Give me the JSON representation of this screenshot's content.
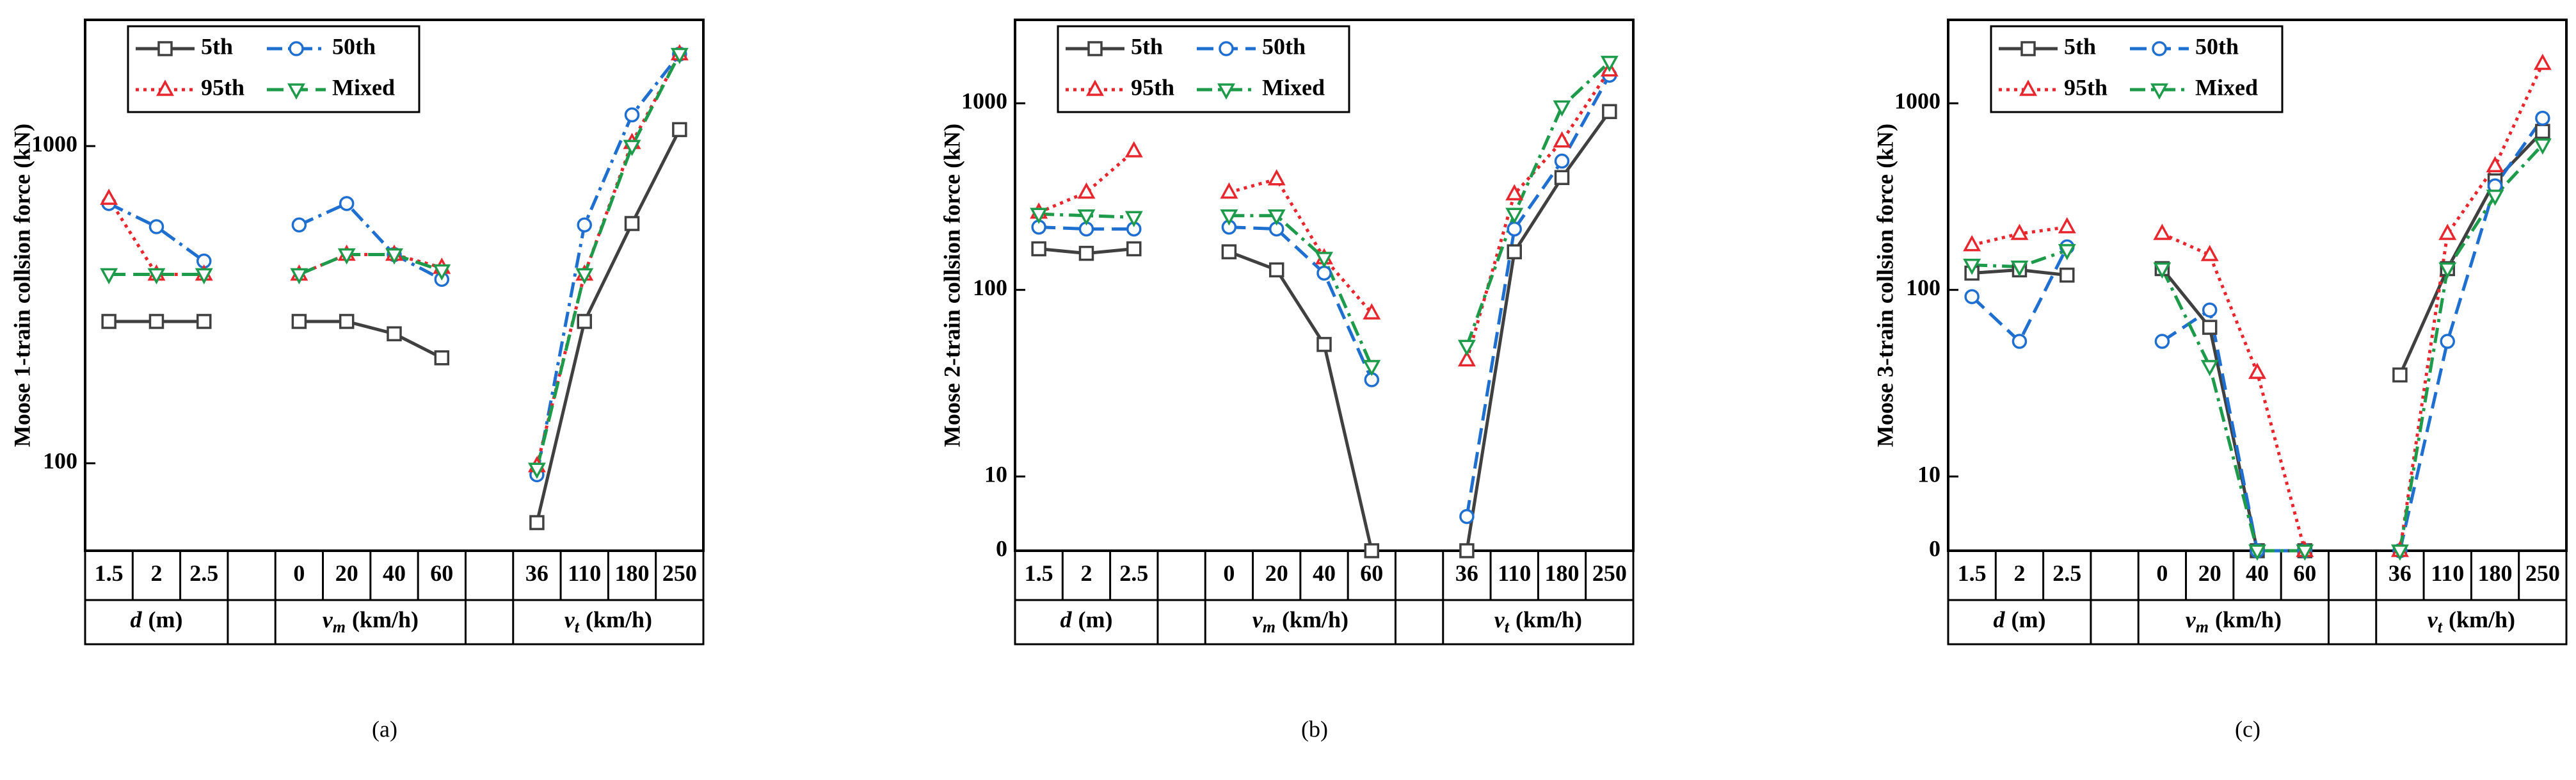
{
  "chart_data": [
    {
      "type": "line",
      "label": "(a)",
      "ylabel": "Moose 1-train collsion force (kN)",
      "log": true,
      "legend": "upper left",
      "categories": [
        "1.5",
        "2",
        "2.5",
        null,
        "0",
        "20",
        "40",
        "60",
        null,
        "36",
        "110",
        "180",
        "250"
      ],
      "groups": [
        {
          "var": "d",
          "unit": "(m)"
        },
        {
          "var": "v",
          "sub": "m",
          "unit": "(km/h)"
        },
        {
          "var": "v",
          "sub": "t",
          "unit": "(km/h)"
        }
      ],
      "ylim": [
        53,
        2500
      ],
      "yticks": [
        100,
        1000
      ],
      "series": [
        {
          "name": "5th",
          "color": "#404040",
          "marker": "square",
          "linestyle": "solid",
          "values": [
            280,
            280,
            280,
            null,
            280,
            280,
            256,
            215,
            null,
            65,
            280,
            570,
            1127
          ]
        },
        {
          "name": "50th",
          "color": "#1f6fd0",
          "marker": "circle",
          "linestyle": "dashdot",
          "values": [
            659,
            557,
            434,
            null,
            564,
            659,
            455,
            380,
            null,
            92,
            564,
            1254,
            1950
          ]
        },
        {
          "name": "95th",
          "color": "#e8262d",
          "marker": "triangle-up",
          "linestyle": "dotted",
          "values": [
            683,
            394,
            394,
            null,
            394,
            455,
            455,
            414,
            null,
            98,
            394,
            1024,
            1950
          ]
        },
        {
          "name": "Mixed",
          "color": "#1e9b4a",
          "marker": "triangle-down",
          "linestyle": "dashed",
          "values": [
            394,
            394,
            394,
            null,
            394,
            455,
            455,
            405,
            null,
            96,
            394,
            1000,
            1950
          ]
        }
      ]
    },
    {
      "type": "line",
      "label": "(b)",
      "ylabel": "Moose 2-train collsion force (kN)",
      "log": true,
      "legend": "upper left",
      "categories": [
        "1.5",
        "2",
        "2.5",
        null,
        "0",
        "20",
        "40",
        "60",
        null,
        "36",
        "110",
        "180",
        "250"
      ],
      "groups": [
        {
          "var": "d",
          "unit": "(m)"
        },
        {
          "var": "v",
          "sub": "m",
          "unit": "(km/h)"
        },
        {
          "var": "v",
          "sub": "t",
          "unit": "(km/h)"
        }
      ],
      "ylim": [
        0,
        2800
      ],
      "yticks": [
        0,
        10,
        100,
        1000
      ],
      "series": [
        {
          "name": "5th",
          "color": "#404040",
          "marker": "square",
          "linestyle": "solid",
          "values": [
            166,
            157,
            166,
            null,
            160,
            128,
            51,
            0,
            null,
            0,
            160,
            400,
            903
          ]
        },
        {
          "name": "50th",
          "color": "#1f6fd0",
          "marker": "circle",
          "linestyle": "dashed",
          "values": [
            217,
            212,
            212,
            null,
            217,
            212,
            123,
            33,
            null,
            6.1,
            212,
            490,
            1414
          ]
        },
        {
          "name": "95th",
          "color": "#e8262d",
          "marker": "triangle-up",
          "linestyle": "dotted",
          "values": [
            260,
            333,
            554,
            null,
            333,
            392,
            148,
            75,
            null,
            42,
            326,
            626,
            1503
          ]
        },
        {
          "name": "Mixed",
          "color": "#1e9b4a",
          "marker": "triangle-down",
          "linestyle": "dashdot",
          "values": [
            255,
            250,
            245,
            null,
            250,
            250,
            148,
            39,
            null,
            50,
            255,
            960,
            1664
          ]
        }
      ]
    },
    {
      "type": "line",
      "label": "(c)",
      "ylabel": "Moose 3-train collsion force (kN)",
      "log": true,
      "legend": "upper left",
      "categories": [
        "1.5",
        "2",
        "2.5",
        null,
        "0",
        "20",
        "40",
        "60",
        null,
        "36",
        "110",
        "180",
        "250"
      ],
      "groups": [
        {
          "var": "d",
          "unit": "(m)"
        },
        {
          "var": "v",
          "sub": "m",
          "unit": "(km/h)"
        },
        {
          "var": "v",
          "sub": "t",
          "unit": "(km/h)"
        }
      ],
      "ylim": [
        0,
        2800
      ],
      "yticks": [
        0,
        10,
        100,
        1000
      ],
      "series": [
        {
          "name": "5th",
          "color": "#404040",
          "marker": "square",
          "linestyle": "solid",
          "values": [
            123,
            128,
            120,
            null,
            130,
            63,
            0,
            0,
            null,
            35,
            130,
            384,
            707
          ]
        },
        {
          "name": "50th",
          "color": "#1f6fd0",
          "marker": "circle",
          "linestyle": "dashed",
          "values": [
            92,
            53,
            170,
            null,
            53,
            78,
            0,
            0,
            null,
            0,
            53,
            361,
            832
          ]
        },
        {
          "name": "95th",
          "color": "#e8262d",
          "marker": "triangle-up",
          "linestyle": "dotted",
          "values": [
            174,
            200,
            217,
            null,
            200,
            154,
            36,
            0,
            null,
            0,
            200,
            461,
            1630
          ]
        },
        {
          "name": "Mixed",
          "color": "#1e9b4a",
          "marker": "triangle-down",
          "linestyle": "dashdot",
          "values": [
            136,
            133,
            163,
            null,
            130,
            39,
            0,
            0,
            null,
            0,
            130,
            319,
            600
          ]
        }
      ]
    }
  ]
}
